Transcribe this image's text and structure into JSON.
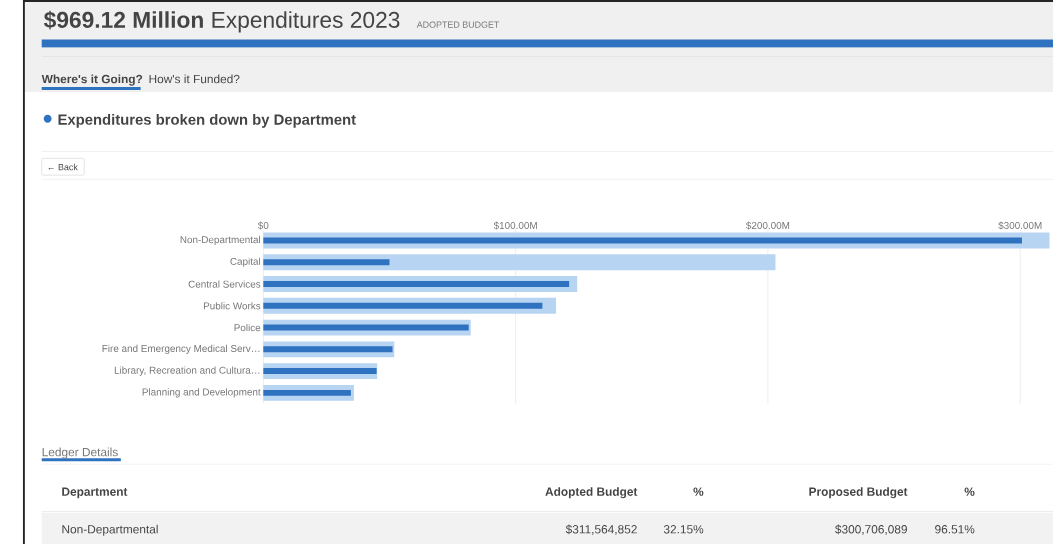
{
  "chart_data": {
    "type": "bar",
    "orientation": "horizontal",
    "title": "**$969.12 Million** Expenditures 2023",
    "subtitle": "ADOPTED BUDGET",
    "categories": [
      "Non-Departmental",
      "Capital",
      "Central Services",
      "Public Works",
      "Police",
      "Fire and Emergency Medical Serv…",
      "Library, Recreation and Cultura…",
      "Planning and Development"
    ],
    "series": [
      {
        "color": "#b7d4f2",
        "values": [
          311.6,
          203,
          124.4,
          116,
          82.2,
          51.9,
          45.1,
          35.9
        ]
      },
      {
        "color": "#2f73c0",
        "values": [
          300.7,
          50,
          121.2,
          110.6,
          81.4,
          51.2,
          44.9,
          34.7
        ]
      }
    ],
    "xlim": [
      0,
      313
    ],
    "xticks": [
      {
        "value": 0,
        "label": "$0"
      },
      {
        "value": 100,
        "label": "$100.00M"
      },
      {
        "value": 200,
        "label": "$200.00M"
      },
      {
        "value": 300,
        "label": "$300.00M"
      }
    ],
    "grid": "x",
    "annotations": [
      "Where's it Going?",
      "How's it Funded?",
      "Expenditures broken down by Department",
      "← Back",
      "Ledger Details",
      "Department",
      "Adopted Budget",
      "%",
      "Proposed Budget",
      "%",
      "Non-Departmental",
      "$311,564,852",
      "32.15%",
      "$300,706,089",
      "96.51%"
    ]
  }
}
